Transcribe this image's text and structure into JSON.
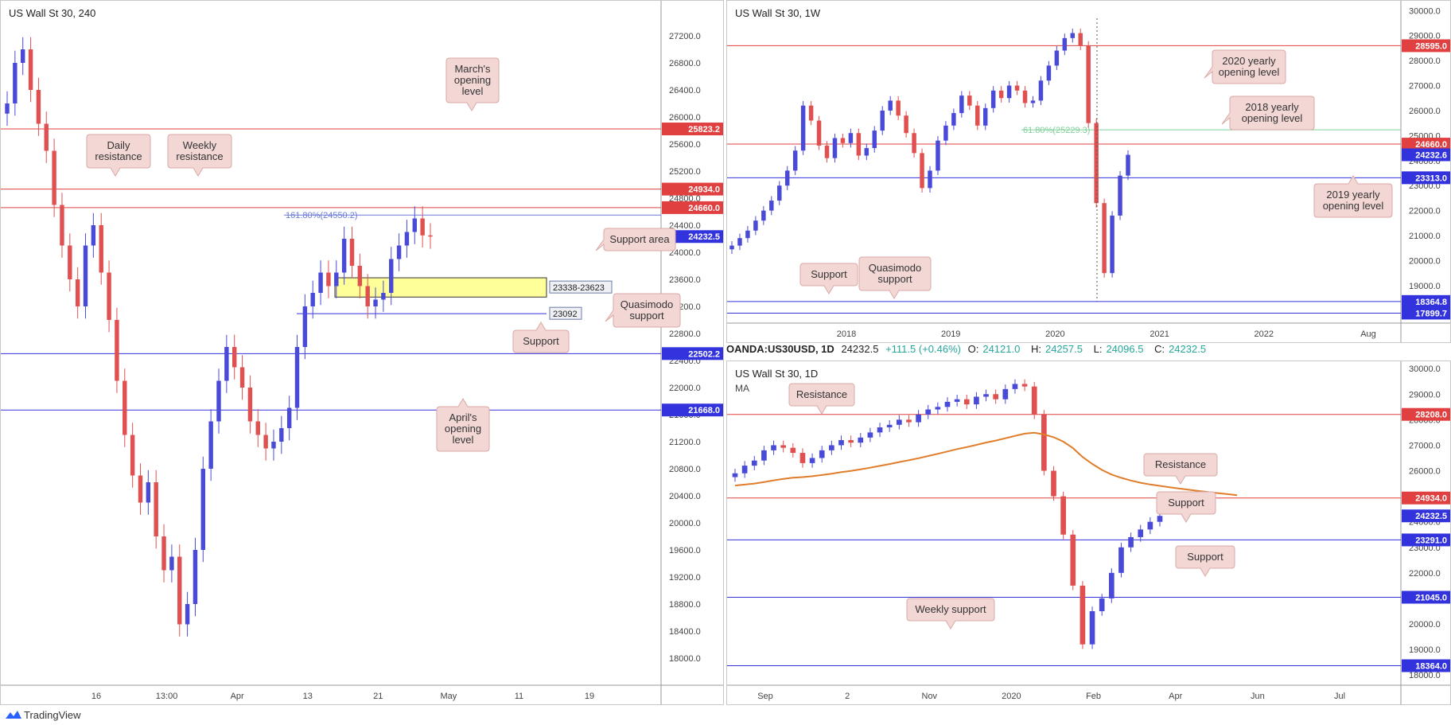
{
  "footer": {
    "brand": "TradingView"
  },
  "ohlc_bar": {
    "symbol": "OANDA:US30USD, 1D",
    "price": "24232.5",
    "change": "+111.5 (+0.46%)",
    "o_label": "O:",
    "o_val": "24121.0",
    "h_label": "H:",
    "h_val": "24257.5",
    "l_label": "L:",
    "l_val": "24096.5",
    "c_label": "C:",
    "c_val": "24232.5"
  },
  "chart_data": [
    {
      "type": "candlestick",
      "title": "US Wall St 30, 240",
      "ylim": [
        17600,
        27600
      ],
      "yticks": [
        "27200.0",
        "26800.0",
        "26400.0",
        "26000.0",
        "25600.0",
        "25200.0",
        "24800.0",
        "24400.0",
        "24000.0",
        "23600.0",
        "23200.0",
        "22800.0",
        "22400.0",
        "22000.0",
        "21600.0",
        "21200.0",
        "20800.0",
        "20400.0",
        "20000.0",
        "19600.0",
        "19200.0",
        "18800.0",
        "18400.0",
        "18000.0"
      ],
      "xticks": [
        "16",
        "13:00",
        "Apr",
        "13",
        "21",
        "May",
        "11",
        "19"
      ],
      "levels": [
        {
          "value": 25823.2,
          "label": "25823.2",
          "color": "#e04040",
          "kind": "red"
        },
        {
          "value": 24934.0,
          "label": "24934.0",
          "color": "#e04040",
          "kind": "red"
        },
        {
          "value": 24660.0,
          "label": "24660.0",
          "color": "#e04040",
          "kind": "red"
        },
        {
          "value": 24232.5,
          "label": "24232.5",
          "color": "#3333dd",
          "kind": "price"
        },
        {
          "value": 22502.2,
          "label": "22502.2",
          "color": "#3333dd",
          "kind": "blue"
        },
        {
          "value": 21668.0,
          "label": "21668.0",
          "color": "#3333dd",
          "kind": "blue"
        }
      ],
      "fib_label": "161.80%(24550.2)",
      "fib_value": 24550.2,
      "zone": {
        "low": 23338,
        "high": 23623,
        "label": "23338-23623"
      },
      "qm_level": {
        "value": 23092,
        "label": "23092"
      },
      "annotations": [
        "March's opening level",
        "Daily resistance",
        "Weekly resistance",
        "Support area",
        "Quasimodo support",
        "Support",
        "April's opening level"
      ],
      "series_close": [
        26200,
        26800,
        27000,
        26400,
        25900,
        25500,
        24700,
        24100,
        23600,
        23200,
        24100,
        24400,
        23700,
        23000,
        22100,
        21300,
        20700,
        20300,
        20600,
        19800,
        19300,
        19500,
        18500,
        18800,
        19600,
        20800,
        21500,
        22100,
        22600,
        22300,
        22000,
        21500,
        21300,
        21100,
        21200,
        21400,
        21700,
        22600,
        23200,
        23400,
        23700,
        23500,
        23700,
        24200,
        23800,
        23500,
        23200,
        23300,
        23400,
        23900,
        24100,
        24300,
        24500,
        24250,
        24232
      ]
    },
    {
      "type": "candlestick",
      "title": "US Wall St 30, 1W",
      "ylim": [
        17500,
        30200
      ],
      "yticks": [
        "30000.0",
        "29000.0",
        "28000.0",
        "27000.0",
        "26000.0",
        "25000.0",
        "24000.0",
        "23000.0",
        "22000.0",
        "21000.0",
        "20000.0",
        "19000.0",
        "18000.0"
      ],
      "xticks": [
        "2018",
        "2019",
        "2020",
        "2021",
        "2022",
        "Aug"
      ],
      "levels": [
        {
          "value": 28595.0,
          "label": "28595.0",
          "color": "#e04040",
          "kind": "red"
        },
        {
          "value": 24660.0,
          "label": "24660.0",
          "color": "#e04040",
          "kind": "red"
        },
        {
          "value": 24232.6,
          "label": "24232.6",
          "color": "#3333dd",
          "kind": "price"
        },
        {
          "value": 23313.0,
          "label": "23313.0",
          "color": "#3333dd",
          "kind": "blue"
        },
        {
          "value": 18364.8,
          "label": "18364.8",
          "color": "#3333dd",
          "kind": "blue"
        },
        {
          "value": 17899.7,
          "label": "17899.7",
          "color": "#3333dd",
          "kind": "blue"
        }
      ],
      "fib_label": "61.80%(25229.3)",
      "fib_value": 25229.3,
      "annotations": [
        "2020 yearly opening level",
        "2018 yearly opening level",
        "2019 yearly opening level",
        "Support",
        "Quasimodo support"
      ],
      "series_close": [
        20600,
        20900,
        21200,
        21600,
        22000,
        22400,
        23000,
        23600,
        24400,
        26200,
        25600,
        24600,
        24100,
        24900,
        24700,
        25100,
        24200,
        24500,
        25200,
        26000,
        26400,
        25800,
        25100,
        24300,
        22900,
        23600,
        24800,
        25400,
        25900,
        26600,
        26200,
        25400,
        26100,
        26800,
        26500,
        27000,
        26800,
        26300,
        26400,
        27200,
        27800,
        28400,
        28900,
        29100,
        28600,
        25500,
        22300,
        19500,
        21800,
        23400,
        24232
      ]
    },
    {
      "type": "candlestick",
      "title": "US Wall St 30, 1D",
      "subtitle": "MA",
      "ylim": [
        17600,
        30100
      ],
      "yticks": [
        "30000.0",
        "29000.0",
        "28000.0",
        "27000.0",
        "26000.0",
        "25000.0",
        "24000.0",
        "23000.0",
        "22000.0",
        "21000.0",
        "20000.0",
        "19000.0",
        "18000.0"
      ],
      "xticks": [
        "Sep",
        "2",
        "Nov",
        "2020",
        "Feb",
        "Apr",
        "Jun",
        "Jul"
      ],
      "levels": [
        {
          "value": 28208.0,
          "label": "28208.0",
          "color": "#e04040",
          "kind": "red"
        },
        {
          "value": 24934.0,
          "label": "24934.0",
          "color": "#e04040",
          "kind": "red"
        },
        {
          "value": 24232.5,
          "label": "24232.5",
          "color": "#3333dd",
          "kind": "price"
        },
        {
          "value": 23291.0,
          "label": "23291.0",
          "color": "#3333dd",
          "kind": "blue"
        },
        {
          "value": 21045.0,
          "label": "21045.0",
          "color": "#3333dd",
          "kind": "blue"
        },
        {
          "value": 18364.0,
          "label": "18364.0",
          "color": "#3333dd",
          "kind": "blue"
        }
      ],
      "annotations": [
        "Resistance",
        "Resistance",
        "Support",
        "Support",
        "Weekly support"
      ],
      "series_close": [
        25900,
        26200,
        26400,
        26800,
        27000,
        26900,
        26700,
        26300,
        26500,
        26800,
        27000,
        27200,
        27100,
        27300,
        27500,
        27700,
        27800,
        28000,
        27900,
        28200,
        28400,
        28500,
        28700,
        28800,
        28600,
        28900,
        29000,
        28800,
        29200,
        29400,
        29300,
        28200,
        26000,
        25000,
        23500,
        21500,
        19200,
        20500,
        21000,
        22000,
        23000,
        23400,
        23700,
        24000,
        24232
      ]
    }
  ]
}
